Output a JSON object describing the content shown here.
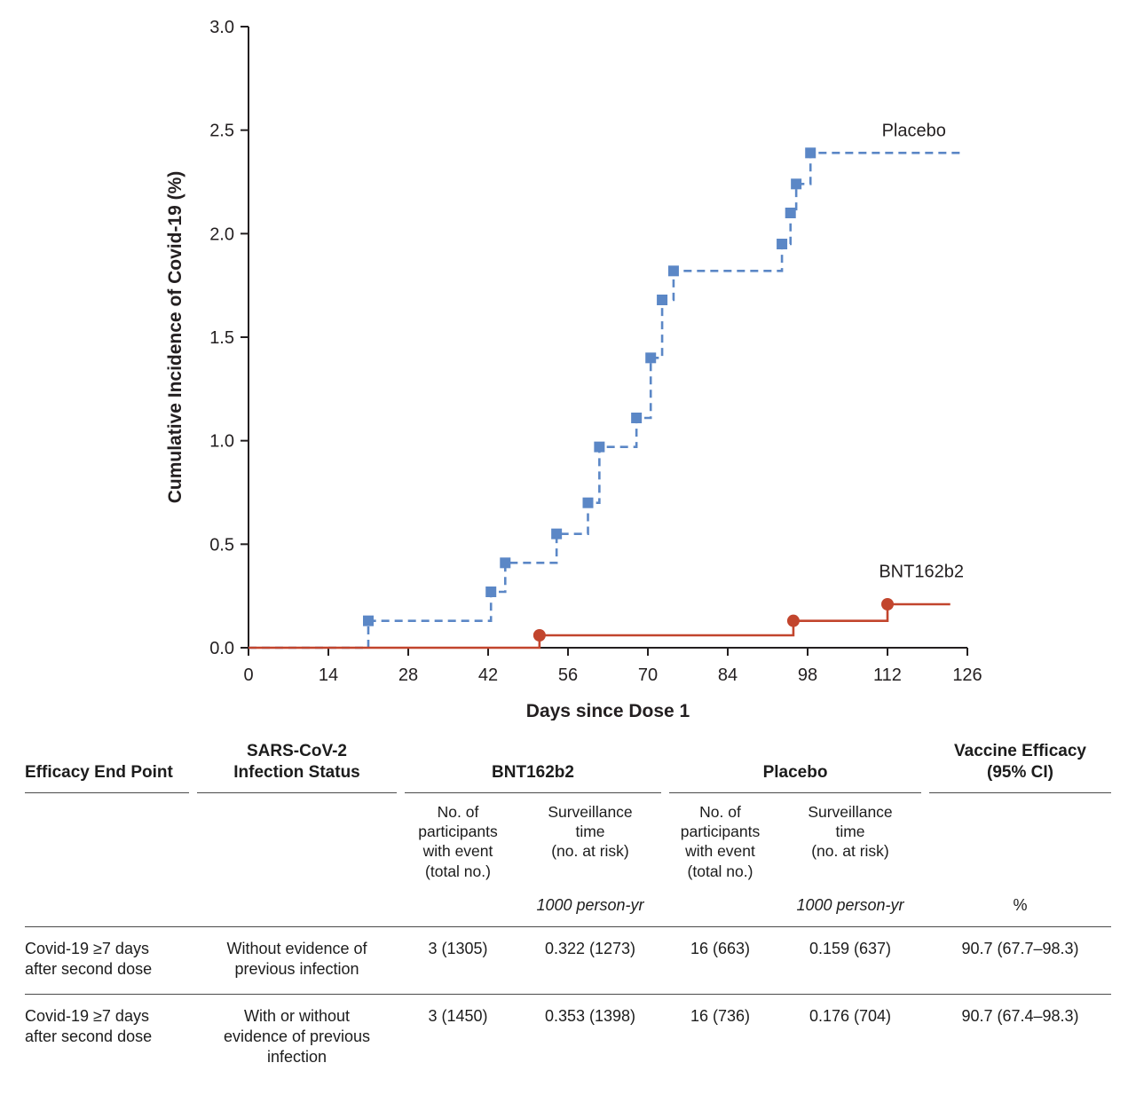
{
  "chart_data": {
    "type": "line",
    "step": "post",
    "title": "",
    "xlabel": "Days since Dose 1",
    "ylabel": "Cumulative Incidence of Covid-19 (%)",
    "xlim": [
      0,
      126
    ],
    "ylim": [
      0,
      3.0
    ],
    "xticks": [
      0,
      14,
      28,
      42,
      56,
      70,
      84,
      98,
      112,
      126
    ],
    "yticks": [
      0.0,
      0.5,
      1.0,
      1.5,
      2.0,
      2.5,
      3.0
    ],
    "grid": false,
    "series": [
      {
        "name": "Placebo",
        "color": "#5b87c6",
        "style": "dashed",
        "marker": "square",
        "points": [
          [
            0,
            0
          ],
          [
            21,
            0.13
          ],
          [
            42.5,
            0.27
          ],
          [
            45,
            0.41
          ],
          [
            54,
            0.55
          ],
          [
            59.5,
            0.7
          ],
          [
            61.5,
            0.97
          ],
          [
            68,
            1.11
          ],
          [
            70.5,
            1.4
          ],
          [
            72.5,
            1.68
          ],
          [
            74.5,
            1.82
          ],
          [
            93.5,
            1.95
          ],
          [
            95,
            2.1
          ],
          [
            96,
            2.24
          ],
          [
            98.5,
            2.39
          ],
          [
            125,
            2.39
          ]
        ],
        "label_pos": [
          111,
          2.47
        ]
      },
      {
        "name": "BNT162b2",
        "color": "#c2452d",
        "style": "solid",
        "marker": "circle",
        "points": [
          [
            0,
            0
          ],
          [
            51,
            0.06
          ],
          [
            95.5,
            0.13
          ],
          [
            112,
            0.21
          ],
          [
            123,
            0.21
          ]
        ],
        "label_pos": [
          110.5,
          0.34
        ]
      }
    ]
  },
  "table": {
    "col_headers": {
      "endpoint": "Efficacy End Point",
      "infection_status": "SARS-CoV-2\nInfection Status",
      "bnt": "BNT162b2",
      "placebo": "Placebo",
      "efficacy": "Vaccine Efficacy\n(95% CI)"
    },
    "sub_headers": {
      "participants": "No. of\nparticipants\nwith event\n(total no.)",
      "surveillance": "Surveillance\ntime\n(no. at risk)"
    },
    "units": {
      "person_yr": "1000 person-yr",
      "percent": "%"
    },
    "rows": [
      {
        "endpoint": "Covid-19 ≥7 days\nafter second dose",
        "status": "Without evidence of\nprevious infection",
        "bnt_events": "3 (1305)",
        "bnt_surv": "0.322 (1273)",
        "placebo_events": "16 (663)",
        "placebo_surv": "0.159 (637)",
        "efficacy": "90.7 (67.7–98.3)"
      },
      {
        "endpoint": "Covid-19 ≥7 days\nafter second dose",
        "status": "With or without\nevidence of previous\ninfection",
        "bnt_events": "3 (1450)",
        "bnt_surv": "0.353 (1398)",
        "placebo_events": "16 (736)",
        "placebo_surv": "0.176 (704)",
        "efficacy": "90.7 (67.4–98.3)"
      }
    ]
  }
}
